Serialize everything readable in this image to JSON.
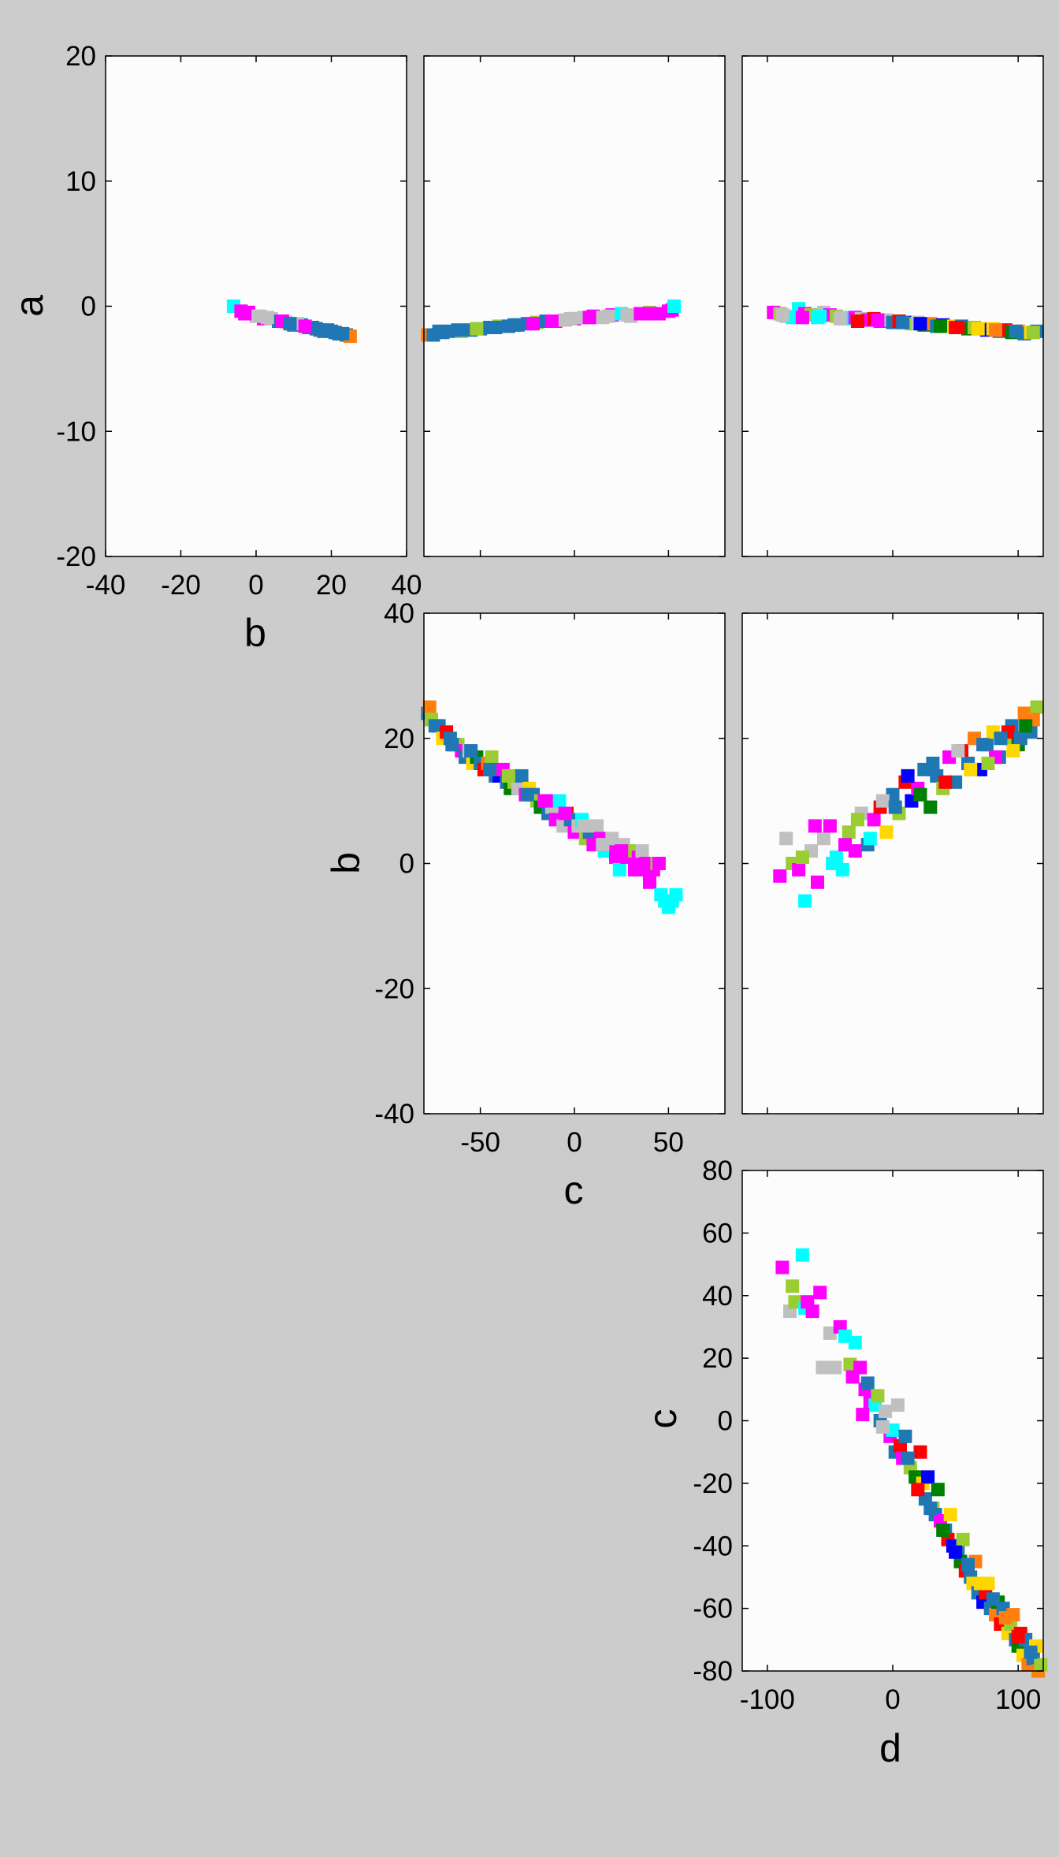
{
  "chart_data": [
    {
      "type": "scatter",
      "panel": "b-vs-a",
      "title": "",
      "xlabel": "b",
      "ylabel": "a",
      "xlim": [
        -40,
        40
      ],
      "ylim": [
        -20,
        20
      ],
      "xticks": [
        "-40",
        "-20",
        "0",
        "20",
        "40"
      ],
      "yticks": [
        "-20",
        "-10",
        "0",
        "10",
        "20"
      ],
      "grid": false,
      "colors": [
        "#00ffff",
        "#ff00ff",
        "#c0c0c0",
        "#1f77b4",
        "#ff7f0e",
        "#9acd32"
      ],
      "x": [
        -6,
        -4,
        -2,
        0,
        2,
        4,
        6,
        8,
        10,
        12,
        14,
        16,
        18,
        20,
        22,
        24,
        25,
        3,
        7,
        11,
        15,
        19,
        23,
        -3,
        1,
        9,
        13,
        17,
        21
      ],
      "y": [
        0.0,
        -0.4,
        -0.5,
        -0.8,
        -1.0,
        -1.0,
        -1.2,
        -1.3,
        -1.5,
        -1.5,
        -1.7,
        -1.8,
        -2.0,
        -2.0,
        -2.2,
        -2.3,
        -2.4,
        -0.9,
        -1.2,
        -1.4,
        -1.7,
        -1.9,
        -2.2,
        -0.6,
        -0.8,
        -1.4,
        -1.6,
        -1.9,
        -2.1
      ],
      "c": [
        0,
        1,
        1,
        2,
        1,
        2,
        3,
        2,
        3,
        3,
        3,
        3,
        3,
        3,
        3,
        3,
        4,
        2,
        1,
        2,
        3,
        3,
        3,
        1,
        2,
        3,
        1,
        3,
        3
      ]
    },
    {
      "type": "scatter",
      "panel": "c-vs-a",
      "title": "",
      "xlabel": "",
      "ylabel": "",
      "xlim": [
        -80,
        80
      ],
      "ylim": [
        -20,
        20
      ],
      "grid": false,
      "colors": [
        "#00ffff",
        "#ff00ff",
        "#c0c0c0",
        "#1f77b4",
        "#ff7f0e",
        "#9acd32"
      ],
      "x": [
        -78,
        -75,
        -70,
        -65,
        -60,
        -55,
        -50,
        -45,
        -40,
        -35,
        -30,
        -25,
        -20,
        -15,
        -10,
        -5,
        0,
        5,
        10,
        15,
        20,
        25,
        30,
        35,
        40,
        45,
        50,
        52,
        53,
        -72,
        -62,
        -52,
        -42,
        -32,
        -22,
        -12,
        -2,
        8,
        18,
        28,
        38
      ],
      "y": [
        -2.3,
        -2.3,
        -2.1,
        -2.0,
        -2.0,
        -1.9,
        -1.8,
        -1.7,
        -1.6,
        -1.6,
        -1.5,
        -1.4,
        -1.3,
        -1.2,
        -1.2,
        -1.1,
        -1.0,
        -0.9,
        -0.8,
        -0.9,
        -0.7,
        -0.6,
        -0.8,
        -0.6,
        -0.5,
        -0.6,
        -0.4,
        -0.3,
        0.0,
        -2.0,
        -1.9,
        -1.8,
        -1.7,
        -1.5,
        -1.4,
        -1.2,
        -1.0,
        -0.9,
        -0.8,
        -0.7,
        -0.6
      ],
      "c": [
        4,
        3,
        3,
        3,
        5,
        3,
        3,
        3,
        5,
        3,
        3,
        3,
        5,
        3,
        1,
        2,
        1,
        2,
        1,
        2,
        1,
        0,
        2,
        1,
        5,
        1,
        1,
        1,
        0,
        3,
        3,
        5,
        3,
        3,
        1,
        1,
        2,
        1,
        2,
        2,
        1
      ]
    },
    {
      "type": "scatter",
      "panel": "d-vs-a",
      "title": "",
      "xlabel": "",
      "ylabel": "",
      "xlim": [
        -120,
        120
      ],
      "ylim": [
        -20,
        20
      ],
      "grid": false,
      "colors": [
        "#00ffff",
        "#ff00ff",
        "#c0c0c0",
        "#1f77b4",
        "#ff7f0e",
        "#9acd32",
        "#ff0000",
        "#0000ff",
        "#008000",
        "#ffd700"
      ],
      "x": [
        -95,
        -90,
        -85,
        -80,
        -75,
        -70,
        -65,
        -60,
        -55,
        -50,
        -45,
        -40,
        -35,
        -30,
        -25,
        -20,
        -15,
        -10,
        -5,
        0,
        5,
        10,
        15,
        20,
        25,
        30,
        35,
        40,
        45,
        50,
        55,
        60,
        65,
        70,
        75,
        80,
        85,
        90,
        95,
        100,
        105,
        110,
        115,
        -88,
        -72,
        -58,
        -42,
        -28,
        -12,
        8,
        22,
        38,
        52,
        68,
        82,
        98,
        112
      ],
      "y": [
        -0.5,
        -0.6,
        -0.8,
        -0.9,
        -0.2,
        -0.6,
        -0.7,
        -0.9,
        -0.5,
        -0.7,
        -0.8,
        -0.9,
        -1.0,
        -0.9,
        -1.0,
        -1.1,
        -1.0,
        -1.2,
        -1.1,
        -1.3,
        -1.2,
        -1.3,
        -1.4,
        -1.3,
        -1.5,
        -1.4,
        -1.6,
        -1.5,
        -1.6,
        -1.7,
        -1.6,
        -1.8,
        -1.7,
        -1.8,
        -1.9,
        -1.8,
        -2.0,
        -1.9,
        -2.1,
        -2.0,
        -2.2,
        -2.1,
        -2.0,
        -0.7,
        -0.9,
        -0.8,
        -1.0,
        -1.2,
        -1.1,
        -1.3,
        -1.4,
        -1.6,
        -1.7,
        -1.8,
        -1.9,
        -2.0,
        -2.1
      ],
      "c": [
        1,
        5,
        2,
        0,
        0,
        1,
        5,
        0,
        2,
        1,
        5,
        2,
        0,
        1,
        2,
        1,
        6,
        1,
        2,
        3,
        6,
        7,
        5,
        2,
        8,
        4,
        3,
        7,
        9,
        6,
        3,
        8,
        5,
        4,
        7,
        9,
        3,
        6,
        8,
        4,
        3,
        9,
        3,
        2,
        1,
        0,
        2,
        6,
        1,
        3,
        7,
        8,
        6,
        9,
        4,
        3,
        5
      ]
    },
    {
      "type": "scatter",
      "panel": "c-vs-b",
      "title": "",
      "xlabel": "c",
      "ylabel": "b",
      "xlim": [
        -80,
        80
      ],
      "ylim": [
        -40,
        40
      ],
      "xticks": [
        "-50",
        "0",
        "50"
      ],
      "yticks": [
        "-40",
        "-20",
        "0",
        "20",
        "40"
      ],
      "grid": false,
      "colors": [
        "#00ffff",
        "#ff00ff",
        "#c0c0c0",
        "#1f77b4",
        "#ff7f0e",
        "#9acd32",
        "#ff0000",
        "#0000ff",
        "#008000",
        "#ffd700"
      ],
      "x": [
        -78,
        -77,
        -76,
        -74,
        -72,
        -70,
        -68,
        -66,
        -64,
        -62,
        -60,
        -58,
        -56,
        -54,
        -52,
        -50,
        -48,
        -46,
        -44,
        -42,
        -40,
        -38,
        -36,
        -34,
        -32,
        -30,
        -28,
        -26,
        -24,
        -22,
        -20,
        -18,
        -16,
        -14,
        -12,
        -10,
        -8,
        -6,
        -4,
        -2,
        0,
        2,
        4,
        6,
        8,
        10,
        12,
        14,
        16,
        18,
        20,
        22,
        24,
        26,
        28,
        30,
        32,
        34,
        36,
        38,
        40,
        42,
        44,
        46,
        48,
        50,
        52,
        54,
        -65,
        -45,
        -25,
        -5,
        15,
        35,
        -55,
        -35,
        -15,
        5,
        25,
        45
      ],
      "y": [
        24,
        25,
        23,
        22,
        22,
        20,
        21,
        20,
        19,
        19,
        18,
        17,
        18,
        16,
        17,
        16,
        15,
        16,
        17,
        14,
        14,
        15,
        13,
        12,
        13,
        12,
        14,
        11,
        12,
        11,
        10,
        9,
        10,
        8,
        9,
        7,
        10,
        6,
        8,
        7,
        5,
        6,
        7,
        4,
        5,
        3,
        6,
        4,
        2,
        3,
        4,
        1,
        -1,
        3,
        1,
        2,
        -1,
        1,
        2,
        0,
        -3,
        -1,
        0,
        -5,
        -6,
        -7,
        -6,
        -5,
        19,
        15,
        11,
        8,
        3,
        -1,
        18,
        14,
        10,
        6,
        2,
        0
      ],
      "c": [
        3,
        4,
        5,
        3,
        3,
        9,
        6,
        3,
        7,
        5,
        1,
        3,
        2,
        9,
        8,
        3,
        6,
        4,
        5,
        3,
        7,
        1,
        3,
        8,
        5,
        2,
        3,
        1,
        9,
        3,
        5,
        8,
        1,
        3,
        2,
        1,
        0,
        2,
        6,
        3,
        1,
        2,
        0,
        5,
        3,
        1,
        2,
        1,
        0,
        1,
        2,
        1,
        0,
        2,
        1,
        5,
        1,
        1,
        2,
        1,
        1,
        1,
        5,
        0,
        0,
        0,
        0,
        0,
        3,
        3,
        3,
        1,
        2,
        1,
        3,
        5,
        1,
        2,
        1,
        1
      ]
    },
    {
      "type": "scatter",
      "panel": "d-vs-b",
      "title": "",
      "xlabel": "",
      "ylabel": "",
      "xlim": [
        -120,
        120
      ],
      "ylim": [
        -40,
        40
      ],
      "grid": false,
      "colors": [
        "#00ffff",
        "#ff00ff",
        "#c0c0c0",
        "#1f77b4",
        "#ff7f0e",
        "#9acd32",
        "#ff0000",
        "#0000ff",
        "#008000",
        "#ffd700"
      ],
      "x": [
        -90,
        -85,
        -80,
        -75,
        -70,
        -65,
        -60,
        -55,
        -50,
        -45,
        -40,
        -35,
        -30,
        -25,
        -20,
        -15,
        -10,
        -5,
        0,
        5,
        10,
        15,
        20,
        25,
        30,
        35,
        40,
        45,
        50,
        55,
        60,
        65,
        70,
        75,
        80,
        85,
        90,
        95,
        100,
        105,
        110,
        115,
        -72,
        -62,
        -48,
        -38,
        -28,
        -18,
        -8,
        2,
        12,
        22,
        32,
        42,
        52,
        62,
        72,
        82,
        92,
        102,
        112,
        106,
        96,
        86,
        76
      ],
      "y": [
        -2,
        4,
        0,
        -1,
        -6,
        2,
        -3,
        4,
        6,
        1,
        -1,
        5,
        2,
        8,
        3,
        7,
        9,
        5,
        11,
        8,
        13,
        10,
        12,
        15,
        9,
        14,
        12,
        17,
        13,
        18,
        16,
        20,
        15,
        19,
        21,
        17,
        20,
        22,
        19,
        24,
        21,
        25,
        1,
        6,
        0,
        3,
        7,
        4,
        10,
        9,
        14,
        11,
        16,
        13,
        18,
        15,
        19,
        17,
        21,
        20,
        23,
        22,
        18,
        20,
        16
      ],
      "c": [
        1,
        2,
        5,
        1,
        0,
        2,
        1,
        2,
        1,
        0,
        0,
        5,
        1,
        2,
        3,
        1,
        6,
        9,
        3,
        5,
        6,
        7,
        1,
        3,
        8,
        3,
        5,
        1,
        3,
        6,
        3,
        4,
        7,
        3,
        9,
        3,
        5,
        3,
        8,
        4,
        3,
        5,
        5,
        1,
        0,
        1,
        5,
        0,
        2,
        3,
        7,
        8,
        3,
        6,
        2,
        9,
        3,
        1,
        6,
        3,
        4,
        8,
        9,
        3,
        5
      ]
    },
    {
      "type": "scatter",
      "panel": "d-vs-c",
      "title": "",
      "xlabel": "d",
      "ylabel": "c",
      "xlim": [
        -120,
        120
      ],
      "ylim": [
        -80,
        80
      ],
      "xticks": [
        "-100",
        "0",
        "100"
      ],
      "yticks": [
        "-80",
        "-60",
        "-40",
        "-20",
        "0",
        "20",
        "40",
        "60",
        "80"
      ],
      "grid": false,
      "colors": [
        "#00ffff",
        "#ff00ff",
        "#c0c0c0",
        "#1f77b4",
        "#ff7f0e",
        "#9acd32",
        "#ff0000",
        "#0000ff",
        "#008000",
        "#ffd700"
      ],
      "x": [
        -88,
        -82,
        -80,
        -78,
        -72,
        -70,
        -68,
        -64,
        -58,
        -56,
        -50,
        -46,
        -42,
        -38,
        -34,
        -32,
        -30,
        -26,
        -22,
        -20,
        -18,
        -14,
        -12,
        -10,
        -6,
        -2,
        0,
        2,
        4,
        6,
        8,
        10,
        14,
        18,
        22,
        24,
        26,
        28,
        32,
        34,
        36,
        38,
        42,
        44,
        46,
        48,
        52,
        54,
        56,
        58,
        62,
        64,
        66,
        68,
        72,
        74,
        76,
        78,
        82,
        84,
        86,
        88,
        92,
        94,
        96,
        98,
        100,
        102,
        104,
        106,
        108,
        110,
        112,
        114,
        116,
        118,
        20,
        30,
        40,
        50,
        60,
        70,
        80,
        90,
        100,
        110,
        -24,
        -8,
        12
      ],
      "y": [
        49,
        35,
        43,
        38,
        53,
        36,
        38,
        35,
        41,
        17,
        28,
        17,
        30,
        27,
        18,
        14,
        25,
        17,
        10,
        12,
        6,
        5,
        8,
        0,
        3,
        -5,
        -3,
        -10,
        5,
        -8,
        -12,
        -5,
        -15,
        -18,
        -10,
        -20,
        -25,
        -18,
        -28,
        -30,
        -22,
        -32,
        -35,
        -38,
        -30,
        -40,
        -42,
        -45,
        -38,
        -48,
        -50,
        -52,
        -45,
        -55,
        -58,
        -55,
        -52,
        -60,
        -62,
        -58,
        -65,
        -60,
        -68,
        -65,
        -62,
        -70,
        -72,
        -68,
        -75,
        -70,
        -78,
        -74,
        -76,
        -72,
        -80,
        -78,
        -22,
        -28,
        -35,
        -42,
        -46,
        -52,
        -57,
        -63,
        -69,
        -74,
        2,
        -2,
        -12
      ],
      "c": [
        1,
        2,
        5,
        5,
        0,
        0,
        1,
        1,
        1,
        2,
        2,
        2,
        1,
        0,
        5,
        1,
        0,
        1,
        1,
        3,
        1,
        0,
        5,
        3,
        2,
        1,
        0,
        3,
        2,
        6,
        1,
        3,
        5,
        8,
        6,
        9,
        3,
        7,
        5,
        3,
        8,
        1,
        3,
        6,
        9,
        7,
        3,
        8,
        5,
        6,
        3,
        9,
        4,
        3,
        7,
        6,
        9,
        3,
        4,
        8,
        6,
        3,
        9,
        5,
        4,
        3,
        8,
        6,
        9,
        3,
        4,
        5,
        3,
        9,
        4,
        5,
        6,
        3,
        8,
        7,
        3,
        9,
        3,
        4,
        6,
        3,
        1,
        2,
        3
      ]
    }
  ]
}
